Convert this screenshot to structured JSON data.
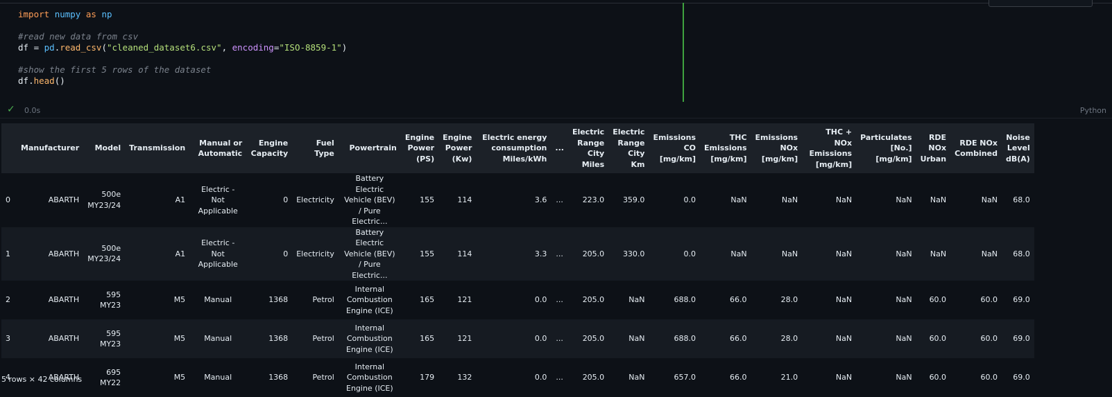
{
  "code_lines": [
    [
      {
        "c": "kw",
        "t": "import"
      },
      {
        "c": "punc",
        "t": " "
      },
      {
        "c": "mod",
        "t": "numpy"
      },
      {
        "c": "punc",
        "t": " "
      },
      {
        "c": "kw",
        "t": "as"
      },
      {
        "c": "punc",
        "t": " "
      },
      {
        "c": "mod",
        "t": "np"
      }
    ],
    [],
    [
      {
        "c": "cmt",
        "t": "#read new data from csv"
      }
    ],
    [
      {
        "c": "var",
        "t": "df"
      },
      {
        "c": "punc",
        "t": " = "
      },
      {
        "c": "mod",
        "t": "pd"
      },
      {
        "c": "punc",
        "t": "."
      },
      {
        "c": "fn",
        "t": "read_csv"
      },
      {
        "c": "punc",
        "t": "("
      },
      {
        "c": "str",
        "t": "\"cleaned_dataset6.csv\""
      },
      {
        "c": "punc",
        "t": ", "
      },
      {
        "c": "param",
        "t": "encoding"
      },
      {
        "c": "punc",
        "t": "="
      },
      {
        "c": "str",
        "t": "\"ISO-8859-1\""
      },
      {
        "c": "punc",
        "t": ")"
      }
    ],
    [],
    [
      {
        "c": "cmt",
        "t": "#show the first 5 rows of the dataset"
      }
    ],
    [
      {
        "c": "var",
        "t": "df"
      },
      {
        "c": "punc",
        "t": "."
      },
      {
        "c": "fn",
        "t": "head"
      },
      {
        "c": "punc",
        "t": "()"
      }
    ]
  ],
  "status": {
    "check_icon": "✓",
    "time": "0.0s",
    "language": "Python"
  },
  "table": {
    "columns": [
      "",
      "Manufacturer",
      "Model",
      "Transmission",
      "Manual or Automatic",
      "Engine Capacity",
      "Fuel Type",
      "Powertrain",
      "Engine Power (PS)",
      "Engine Power (Kw)",
      "Electric energy consumption Miles/kWh",
      "...",
      "Electric Range City Miles",
      "Electric Range City Km",
      "Emissions CO [mg/km]",
      "THC Emissions [mg/km]",
      "Emissions NOx [mg/km]",
      "THC + NOx Emissions [mg/km]",
      "Particulates [No.] [mg/km]",
      "RDE NOx Urban",
      "RDE NOx Combined",
      "Noise Level dB(A)"
    ],
    "rows": [
      [
        "0",
        "ABARTH",
        "500e MY23/24",
        "A1",
        "Electric - Not Applicable",
        "0",
        "Electricity",
        "Battery Electric Vehicle (BEV) / Pure Electric...",
        "155",
        "114",
        "3.6",
        "...",
        "223.0",
        "359.0",
        "0.0",
        "NaN",
        "NaN",
        "NaN",
        "NaN",
        "NaN",
        "NaN",
        "68.0"
      ],
      [
        "1",
        "ABARTH",
        "500e MY23/24",
        "A1",
        "Electric - Not Applicable",
        "0",
        "Electricity",
        "Battery Electric Vehicle (BEV) / Pure Electric...",
        "155",
        "114",
        "3.3",
        "...",
        "205.0",
        "330.0",
        "0.0",
        "NaN",
        "NaN",
        "NaN",
        "NaN",
        "NaN",
        "NaN",
        "68.0"
      ],
      [
        "2",
        "ABARTH",
        "595 MY23",
        "M5",
        "Manual",
        "1368",
        "Petrol",
        "Internal Combustion Engine (ICE)",
        "165",
        "121",
        "0.0",
        "...",
        "205.0",
        "NaN",
        "688.0",
        "66.0",
        "28.0",
        "NaN",
        "NaN",
        "60.0",
        "60.0",
        "69.0"
      ],
      [
        "3",
        "ABARTH",
        "595 MY23",
        "M5",
        "Manual",
        "1368",
        "Petrol",
        "Internal Combustion Engine (ICE)",
        "165",
        "121",
        "0.0",
        "...",
        "205.0",
        "NaN",
        "688.0",
        "66.0",
        "28.0",
        "NaN",
        "NaN",
        "60.0",
        "60.0",
        "69.0"
      ],
      [
        "4",
        "ABARTH",
        "695 MY22",
        "M5",
        "Manual",
        "1368",
        "Petrol",
        "Internal Combustion Engine (ICE)",
        "179",
        "132",
        "0.0",
        "...",
        "205.0",
        "NaN",
        "657.0",
        "66.0",
        "21.0",
        "NaN",
        "NaN",
        "60.0",
        "60.0",
        "69.0"
      ]
    ]
  },
  "footer": "5 rows × 42 columns"
}
